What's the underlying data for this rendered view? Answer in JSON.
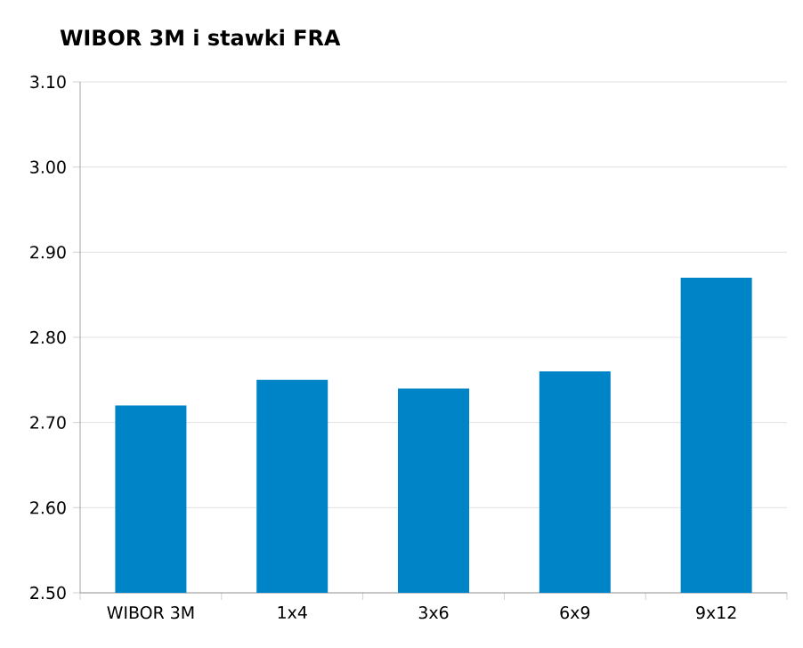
{
  "chart_data": {
    "type": "bar",
    "title": "WIBOR 3M i stawki FRA",
    "categories": [
      "WIBOR 3M",
      "1x4",
      "3x6",
      "6x9",
      "9x12"
    ],
    "values": [
      2.72,
      2.75,
      2.74,
      2.76,
      2.87
    ],
    "color": "#0084c8",
    "ylim": [
      2.5,
      3.1
    ],
    "yticks": [
      {
        "value": 2.5,
        "label": "2.50"
      },
      {
        "value": 2.6,
        "label": "2.60"
      },
      {
        "value": 2.7,
        "label": "2.70"
      },
      {
        "value": 2.8,
        "label": "2.80"
      },
      {
        "value": 2.9,
        "label": "2.90"
      },
      {
        "value": 3.0,
        "label": "3.00"
      },
      {
        "value": 3.1,
        "label": "3.10"
      }
    ],
    "grid": "y"
  }
}
